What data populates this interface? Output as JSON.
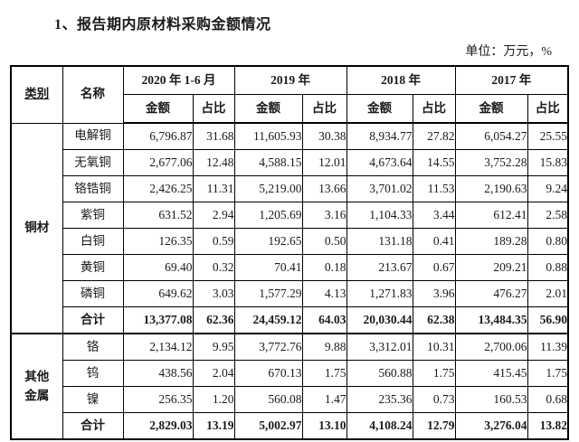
{
  "page": {
    "title": "1、报告期内原材料采购金额情况",
    "unit_note": "单位：万元，%"
  },
  "table": {
    "header": {
      "category": "类别",
      "name": "名称",
      "periods": [
        "2020 年 1-6 月",
        "2019 年",
        "2018 年",
        "2017 年"
      ],
      "amount_label": "金额",
      "ratio_label": "占比"
    },
    "sections": [
      {
        "category": "铜材",
        "rows": [
          {
            "name": "电解铜",
            "bold": false,
            "values": [
              "6,796.87",
              "31.68",
              "11,605.93",
              "30.38",
              "8,934.77",
              "27.82",
              "6,054.27",
              "25.55"
            ]
          },
          {
            "name": "无氧铜",
            "bold": false,
            "values": [
              "2,677.06",
              "12.48",
              "4,588.15",
              "12.01",
              "4,673.64",
              "14.55",
              "3,752.28",
              "15.83"
            ]
          },
          {
            "name": "铬锆铜",
            "bold": false,
            "values": [
              "2,426.25",
              "11.31",
              "5,219.00",
              "13.66",
              "3,701.02",
              "11.53",
              "2,190.63",
              "9.24"
            ]
          },
          {
            "name": "紫铜",
            "bold": false,
            "values": [
              "631.52",
              "2.94",
              "1,205.69",
              "3.16",
              "1,104.33",
              "3.44",
              "612.41",
              "2.58"
            ]
          },
          {
            "name": "白铜",
            "bold": false,
            "values": [
              "126.35",
              "0.59",
              "192.65",
              "0.50",
              "131.18",
              "0.41",
              "189.28",
              "0.80"
            ]
          },
          {
            "name": "黄铜",
            "bold": false,
            "values": [
              "69.40",
              "0.32",
              "70.41",
              "0.18",
              "213.67",
              "0.67",
              "209.21",
              "0.88"
            ]
          },
          {
            "name": "磷铜",
            "bold": false,
            "values": [
              "649.62",
              "3.03",
              "1,577.29",
              "4.13",
              "1,271.83",
              "3.96",
              "476.27",
              "2.01"
            ]
          },
          {
            "name": "合计",
            "bold": true,
            "values": [
              "13,377.08",
              "62.36",
              "24,459.12",
              "64.03",
              "20,030.44",
              "62.38",
              "13,484.35",
              "56.90"
            ]
          }
        ]
      },
      {
        "category": "其他金属",
        "rows": [
          {
            "name": "铬",
            "bold": false,
            "values": [
              "2,134.12",
              "9.95",
              "3,772.76",
              "9.88",
              "3,312.01",
              "10.31",
              "2,700.06",
              "11.39"
            ]
          },
          {
            "name": "钨",
            "bold": false,
            "values": [
              "438.56",
              "2.04",
              "670.13",
              "1.75",
              "560.88",
              "1.75",
              "415.45",
              "1.75"
            ]
          },
          {
            "name": "镍",
            "bold": false,
            "values": [
              "256.35",
              "1.20",
              "560.08",
              "1.47",
              "235.36",
              "0.73",
              "160.53",
              "0.68"
            ]
          },
          {
            "name": "合计",
            "bold": true,
            "values": [
              "2,829.03",
              "13.19",
              "5,002.97",
              "13.10",
              "4,108.24",
              "12.79",
              "3,276.04",
              "13.82"
            ]
          }
        ]
      }
    ]
  }
}
